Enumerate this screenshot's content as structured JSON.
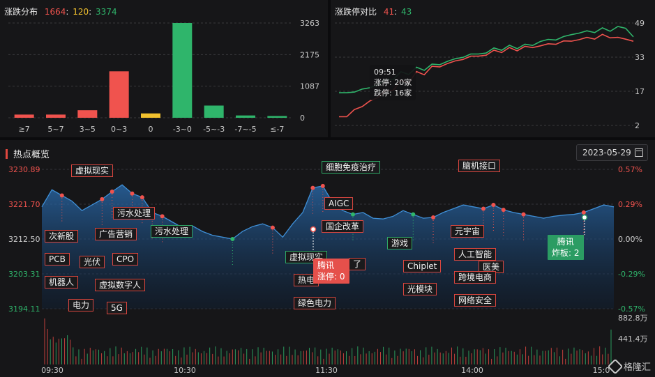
{
  "distribution": {
    "title": "涨跌分布",
    "up": "1664",
    "flat": "120",
    "down": "3374",
    "y_ticks": [
      "3263",
      "2175",
      "1087",
      "0"
    ],
    "categories": [
      "≥7",
      "5~7",
      "3~5",
      "0~3",
      "0",
      "-3~0",
      "-5~-3",
      "-7~-5",
      "≤-7"
    ]
  },
  "limit": {
    "title": "涨跌停对比",
    "up": "41",
    "down": "43",
    "y_ticks": [
      "49",
      "33",
      "17",
      "2"
    ],
    "tooltip": {
      "time": "09:51",
      "up": "涨停: 20家",
      "down": "跌停: 16家"
    }
  },
  "hot": {
    "title": "热点概览",
    "date": "2023-05-29",
    "left_ticks": [
      "3230.89",
      "3221.70",
      "3212.50",
      "3203.31",
      "3194.11"
    ],
    "right_ticks": [
      "0.57%",
      "0.29%",
      "0.00%",
      "-0.29%",
      "-0.57%"
    ],
    "vol_ticks": [
      "882.8万",
      "441.4万"
    ],
    "time_ticks": [
      "09:30",
      "10:30",
      "11:30",
      "14:00",
      "15:0"
    ],
    "tags": [
      "虚拟现实",
      "次新股",
      "PCB",
      "光伏",
      "CPO",
      "机器人",
      "虚拟数字人",
      "电力",
      "5G",
      "广告营销",
      "污水处理",
      "污水处理",
      "细胞免疫治疗",
      "AIGC",
      "国企改革",
      "虚拟现实",
      "热电",
      "绿色电力",
      "游戏",
      "Chiplet",
      "光模块",
      "脑机接口",
      "元宇宙",
      "人工智能",
      "医美",
      "跨境电商",
      "网络安全",
      "了"
    ],
    "flag_red": [
      "腾讯",
      "涨停: 0"
    ],
    "flag_green": [
      "腾讯",
      "炸板: 2"
    ],
    "watermark": "格隆汇"
  },
  "colors": {
    "up": "#f0534e",
    "down": "#2fb56b",
    "flat": "#f2c12e",
    "index_line": "#3f8fd6"
  },
  "chart_data": [
    {
      "type": "bar",
      "title": "涨跌分布",
      "categories": [
        "≥7",
        "5~7",
        "3~5",
        "0~3",
        "0",
        "-3~0",
        "-5~-3",
        "-7~-5",
        "≤-7"
      ],
      "values": [
        110,
        110,
        260,
        1600,
        150,
        3263,
        420,
        80,
        60
      ],
      "ylim": [
        0,
        3263
      ]
    },
    {
      "type": "line",
      "title": "涨跌停对比",
      "ylim": [
        2,
        49
      ],
      "series": [
        {
          "name": "涨停",
          "color": "#f0534e",
          "values": [
            6,
            10,
            14,
            18,
            22,
            26,
            29,
            31,
            33,
            34,
            36,
            37,
            38,
            39,
            40,
            41,
            42,
            43,
            42,
            41
          ]
        },
        {
          "name": "跌停",
          "color": "#2fb56b",
          "values": [
            17,
            18,
            20,
            23,
            26,
            28,
            30,
            32,
            34,
            35,
            37,
            38,
            39,
            41,
            42,
            44,
            45,
            46,
            47,
            43
          ]
        }
      ]
    },
    {
      "type": "area",
      "title": "热点概览",
      "ylim": [
        3194.11,
        3230.89
      ],
      "values": [
        3221.0,
        3225.5,
        3224.0,
        3222.5,
        3220.0,
        3221.5,
        3223.0,
        3225.0,
        3226.8,
        3224.5,
        3223.5,
        3219.5,
        3218.5,
        3217.0,
        3215.5,
        3216.0,
        3214.5,
        3213.5,
        3213.0,
        3212.5,
        3214.5,
        3215.8,
        3216.5,
        3215.5,
        3213.0,
        3216.5,
        3219.5,
        3226.0,
        3226.5,
        3222.0,
        3220.0,
        3219.0,
        3219.5,
        3218.0,
        3217.8,
        3218.5,
        3220.0,
        3219.0,
        3218.0,
        3218.2,
        3219.5,
        3220.5,
        3221.5,
        3221.0,
        3220.5,
        3221.5,
        3220.2,
        3219.5,
        3219.0,
        3218.5,
        3218.0,
        3218.5,
        3218.8,
        3219.0,
        3219.5,
        3220.5,
        3221.5,
        3221.0
      ]
    }
  ]
}
